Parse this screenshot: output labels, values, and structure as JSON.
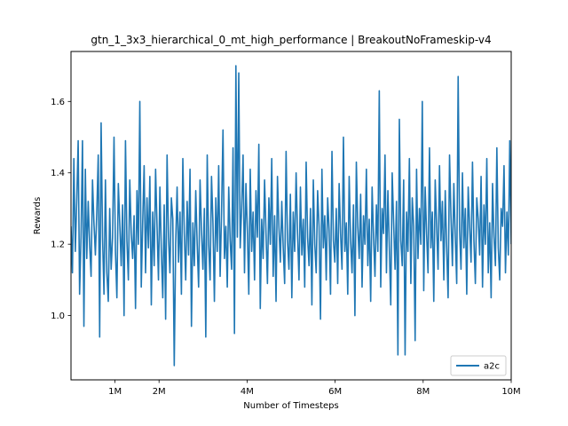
{
  "chart_data": {
    "type": "line",
    "title": "gtn_1_3x3_hierarchical_0_mt_high_performance | BreakoutNoFrameskip-v4",
    "xlabel": "Number of Timesteps",
    "ylabel": "Rewards",
    "xlim": [
      0,
      10000000
    ],
    "ylim": [
      0.82,
      1.74
    ],
    "x_ticks": [
      {
        "value": 1000000,
        "label": "1M"
      },
      {
        "value": 2000000,
        "label": "2M"
      },
      {
        "value": 4000000,
        "label": "4M"
      },
      {
        "value": 6000000,
        "label": "6M"
      },
      {
        "value": 8000000,
        "label": "8M"
      },
      {
        "value": 10000000,
        "label": "10M"
      }
    ],
    "y_ticks": [
      {
        "value": 1.0,
        "label": "1.0"
      },
      {
        "value": 1.2,
        "label": "1.2"
      },
      {
        "value": 1.4,
        "label": "1.4"
      },
      {
        "value": 1.6,
        "label": "1.6"
      }
    ],
    "grid": false,
    "legend_position": "lower-right",
    "series": [
      {
        "name": "a2c",
        "color": "#1f77b4",
        "x_start": 0,
        "x_end": 10000000,
        "values": [
          1.25,
          1.12,
          1.44,
          1.18,
          1.32,
          1.49,
          1.06,
          1.22,
          1.49,
          0.97,
          1.41,
          1.16,
          1.32,
          1.2,
          1.11,
          1.38,
          1.26,
          1.17,
          1.29,
          1.45,
          0.94,
          1.54,
          1.22,
          1.06,
          1.38,
          1.12,
          1.04,
          1.3,
          1.13,
          1.22,
          1.5,
          1.18,
          1.05,
          1.37,
          1.26,
          1.14,
          1.31,
          1.0,
          1.49,
          1.21,
          1.1,
          1.38,
          1.23,
          1.16,
          1.28,
          1.02,
          1.35,
          1.2,
          1.6,
          1.08,
          1.26,
          1.42,
          1.12,
          1.33,
          1.19,
          1.39,
          1.03,
          1.29,
          1.14,
          1.41,
          1.25,
          1.1,
          1.36,
          1.18,
          1.05,
          1.31,
          0.99,
          1.45,
          1.22,
          1.12,
          1.33,
          1.27,
          0.86,
          1.2,
          1.36,
          1.15,
          1.29,
          1.06,
          1.44,
          1.23,
          1.1,
          1.32,
          1.17,
          1.41,
          0.97,
          1.26,
          1.14,
          1.35,
          1.2,
          1.08,
          1.38,
          1.24,
          1.13,
          1.3,
          0.94,
          1.45,
          1.2,
          1.1,
          1.39,
          1.26,
          1.04,
          1.33,
          1.18,
          1.42,
          1.11,
          1.29,
          1.52,
          1.16,
          1.25,
          1.08,
          1.36,
          1.21,
          1.13,
          1.47,
          0.95,
          1.7,
          1.22,
          1.68,
          1.19,
          1.3,
          1.45,
          1.12,
          1.37,
          1.24,
          1.06,
          1.41,
          1.18,
          1.29,
          1.1,
          1.35,
          1.22,
          1.48,
          1.02,
          1.27,
          1.16,
          1.38,
          1.23,
          1.09,
          1.33,
          1.2,
          1.44,
          1.11,
          1.28,
          1.04,
          1.39,
          1.25,
          1.15,
          1.32,
          1.19,
          1.09,
          1.46,
          1.21,
          1.13,
          1.34,
          1.05,
          1.29,
          1.18,
          1.4,
          1.23,
          1.1,
          1.36,
          1.17,
          1.27,
          1.08,
          1.43,
          1.22,
          1.14,
          1.3,
          1.03,
          1.38,
          1.2,
          1.12,
          1.35,
          1.25,
          0.99,
          1.41,
          1.19,
          1.28,
          1.1,
          1.33,
          1.24,
          1.06,
          1.46,
          1.21,
          1.15,
          1.3,
          1.09,
          1.37,
          1.23,
          1.13,
          1.5,
          1.18,
          1.26,
          1.06,
          1.39,
          1.21,
          1.12,
          1.31,
          1.0,
          1.43,
          1.25,
          1.16,
          1.34,
          1.08,
          1.28,
          1.2,
          1.41,
          1.14,
          1.27,
          1.04,
          1.36,
          1.22,
          1.11,
          1.31,
          1.18,
          1.63,
          1.08,
          1.3,
          1.23,
          1.45,
          1.12,
          1.35,
          1.19,
          1.03,
          1.4,
          1.26,
          1.13,
          1.32,
          0.89,
          1.55,
          1.21,
          1.14,
          1.38,
          0.89,
          1.29,
          1.18,
          1.44,
          1.09,
          1.33,
          1.25,
          0.93,
          1.41,
          1.16,
          1.3,
          1.2,
          1.6,
          1.07,
          1.36,
          1.23,
          1.12,
          1.47,
          1.19,
          1.29,
          1.04,
          1.38,
          1.25,
          1.13,
          1.42,
          1.21,
          1.32,
          1.1,
          1.35,
          1.19,
          1.05,
          1.45,
          1.28,
          1.14,
          1.37,
          1.22,
          1.09,
          1.67,
          1.24,
          1.13,
          1.4,
          1.19,
          1.3,
          1.06,
          1.36,
          1.25,
          1.15,
          1.43,
          1.21,
          1.09,
          1.33,
          1.27,
          1.17,
          1.39,
          1.08,
          1.31,
          1.2,
          1.44,
          1.12,
          1.26,
          1.05,
          1.37,
          1.22,
          1.14,
          1.47,
          1.19,
          1.1,
          1.3,
          1.25,
          1.42,
          1.12,
          1.29,
          1.17,
          1.49,
          1.2
        ]
      }
    ]
  }
}
